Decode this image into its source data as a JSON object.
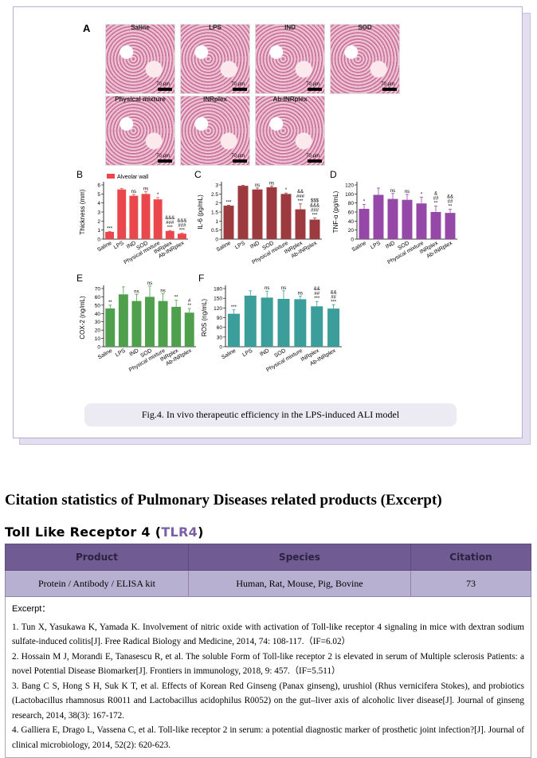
{
  "figure": {
    "panel_label": "A",
    "micrographs": [
      {
        "label": "Saline"
      },
      {
        "label": "LPS"
      },
      {
        "label": "IND"
      },
      {
        "label": "SOD"
      },
      {
        "label": "Physical mixture"
      },
      {
        "label": "INRplex"
      },
      {
        "label": "Ab-INRplex"
      }
    ],
    "scale_bar": "70 μm",
    "caption": "Fig.4. In vivo therapeutic efficiency in the LPS-induced ALI model"
  },
  "chart_data": [
    {
      "panel": "B",
      "type": "bar",
      "legend": "Alveolar wall",
      "ylabel": "Thickness (mm)",
      "color": "#e9474b",
      "ylim": [
        0,
        6
      ],
      "ticks": [
        0,
        1,
        2,
        3,
        4,
        5,
        6
      ],
      "categories": [
        "Saline",
        "LPS",
        "IND",
        "SOD",
        "Physical mixture",
        "INRplex",
        "Ab-INRplex"
      ],
      "values": [
        0.8,
        5.5,
        4.8,
        5.0,
        4.4,
        0.9,
        0.6
      ],
      "errors": [
        0.05,
        0.1,
        0.15,
        0.25,
        0.2,
        0.05,
        0.05
      ],
      "sig": [
        "***",
        "",
        "ns",
        "ns",
        "*",
        "&&&\n###\n***",
        "&&&\n###\n***"
      ]
    },
    {
      "panel": "C",
      "type": "bar",
      "ylabel": "IL-6 (pg/mL)",
      "color": "#9c3a40",
      "ylim": [
        0,
        3.0
      ],
      "ticks": [
        0.0,
        0.5,
        1.0,
        1.5,
        2.0,
        2.5,
        3.0
      ],
      "categories": [
        "Saline",
        "LPS",
        "IND",
        "SOD",
        "Physical mixture",
        "INRplex",
        "Ab-INRplex"
      ],
      "values": [
        1.85,
        2.95,
        2.75,
        2.87,
        2.5,
        1.65,
        1.08
      ],
      "errors": [
        0.03,
        0.03,
        0.08,
        0.07,
        0.05,
        0.3,
        0.1
      ],
      "sig": [
        "***",
        "",
        "ns",
        "ns",
        "*",
        "&&\n###\n***",
        "$$$\n&&&\n###\n***"
      ]
    },
    {
      "panel": "D",
      "type": "bar",
      "ylabel": "TNF-α (pg/mL)",
      "color": "#9548a8",
      "ylim": [
        0,
        120
      ],
      "ticks": [
        0,
        20,
        40,
        60,
        80,
        100,
        120
      ],
      "categories": [
        "Saline",
        "LPS",
        "IND",
        "SOD",
        "Physical mixture",
        "INRplex",
        "Ab-INRplex"
      ],
      "values": [
        67,
        98,
        89,
        87,
        79,
        60,
        58
      ],
      "errors": [
        10,
        15,
        12,
        12,
        14,
        13,
        8
      ],
      "sig": [
        "*",
        "",
        "ns",
        "ns",
        "*",
        "&\n##\n**",
        "&&\n##\n**"
      ]
    },
    {
      "panel": "E",
      "type": "bar",
      "ylabel": "COX-2 (ng/mL)",
      "color": "#4ea04c",
      "ylim": [
        0,
        70
      ],
      "ticks": [
        0,
        10,
        20,
        30,
        40,
        50,
        60,
        70
      ],
      "categories": [
        "Saline",
        "LPS",
        "IND",
        "SOD",
        "Physical mixture",
        "INRplex",
        "Ab-INRplex"
      ],
      "values": [
        46,
        63,
        55,
        60,
        55,
        48,
        41
      ],
      "errors": [
        4,
        9,
        8,
        13,
        9,
        8,
        5
      ],
      "sig": [
        "**",
        "",
        "ns",
        "ns",
        "ns",
        "**",
        "#\n**"
      ]
    },
    {
      "panel": "F",
      "type": "bar",
      "ylabel": "ROS (ng/mL)",
      "color": "#3c9e9b",
      "ylim": [
        0,
        180
      ],
      "ticks": [
        0,
        30,
        60,
        90,
        120,
        150,
        180
      ],
      "categories": [
        "Saline",
        "LPS",
        "IND",
        "SOD",
        "Physical mixture",
        "INRplex",
        "Ab-INRplex"
      ],
      "values": [
        102,
        158,
        152,
        148,
        147,
        125,
        118
      ],
      "errors": [
        12,
        15,
        20,
        25,
        10,
        15,
        12
      ],
      "sig": [
        "***",
        "",
        "ns",
        "ns",
        "ns",
        "&&\n##\n***",
        "&&\n##\n***"
      ]
    }
  ],
  "section_title": "Citation statistics of Pulmonary Diseases related products (Excerpt)",
  "subsection": {
    "name": "Toll Like Receptor 4 (",
    "abbr": "TLR4",
    "close": ")"
  },
  "table": {
    "headers": [
      "Product",
      "Species",
      "Citation"
    ],
    "row": [
      "Protein / Antibody / ELISA kit",
      "Human, Rat, Mouse, Pig, Bovine",
      "73"
    ],
    "excerpt_label": "Excerpt：",
    "refs": [
      "1. Tun X, Yasukawa K, Yamada K. Involvement of nitric oxide with activation of Toll-like receptor 4 signaling in mice with dextran sodium sulfate-induced colitis[J]. Free Radical Biology and Medicine, 2014, 74: 108-117.（IF=6.02）",
      "2. Hossain M J, Morandi E, Tanasescu R, et al. The soluble Form of Toll-like receptor 2 is elevated in serum of Multiple sclerosis Patients: a novel Potential Disease Biomarker[J]. Frontiers in immunology, 2018, 9: 457.（IF=5.511）",
      "3. Bang C S, Hong S H, Suk K T, et al. Effects of Korean Red Ginseng (Panax ginseng), urushiol (Rhus vernicifera Stokes), and probiotics (Lactobacillus rhamnosus R0011 and Lactobacillus acidophilus R0052) on the gut–liver axis of alcoholic liver disease[J]. Journal of ginseng research, 2014, 38(3): 167-172.",
      "4. Galliera E, Drago L, Vassena C, et al. Toll-like receptor 2 in serum: a potential diagnostic marker of prosthetic joint infection?[J]. Journal of clinical microbiology, 2014, 52(2): 620-623."
    ]
  }
}
